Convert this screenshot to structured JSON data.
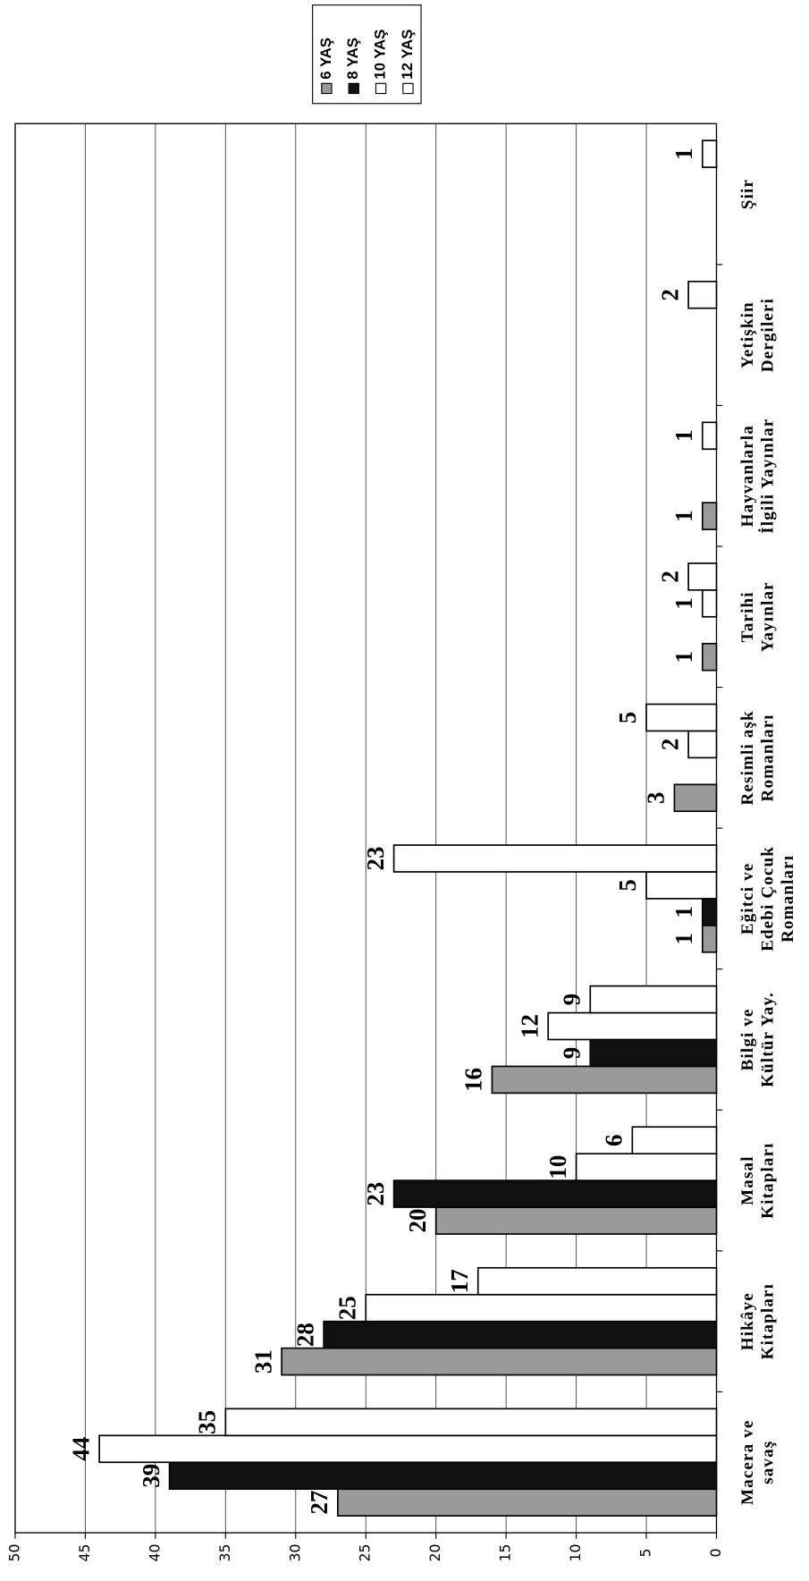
{
  "chart_data": {
    "type": "bar",
    "categories": [
      [
        "Macera ve",
        "savaş"
      ],
      [
        "Hikâye",
        "Kitapları"
      ],
      [
        "Masal",
        "Kitapları"
      ],
      [
        "Bilgi ve",
        "Kültür Yay."
      ],
      [
        "Eğitci ve",
        "Edebi Çocuk",
        "Romanları"
      ],
      [
        "Resimli aşk",
        "Romanları"
      ],
      [
        "Tarihi",
        "Yayınlar"
      ],
      [
        "Hayvanlarla",
        "İlgili Yayınlar"
      ],
      [
        "Yetişkin",
        "Dergileri"
      ],
      [
        "Şiir"
      ]
    ],
    "series": [
      {
        "name": "6 YAŞ",
        "color": "#9a9a9a",
        "values": [
          27,
          31,
          20,
          16,
          1,
          3,
          1,
          1,
          null,
          null
        ]
      },
      {
        "name": "8 YAŞ",
        "color": "#111111",
        "values": [
          39,
          28,
          23,
          9,
          1,
          null,
          null,
          null,
          null,
          null
        ]
      },
      {
        "name": "10 YAŞ",
        "color": "#ffffff",
        "values": [
          44,
          25,
          10,
          12,
          5,
          2,
          1,
          null,
          null,
          null
        ]
      },
      {
        "name": "12 YAŞ",
        "color": "#ffffff",
        "values": [
          35,
          17,
          6,
          9,
          23,
          5,
          2,
          1,
          2,
          1
        ]
      }
    ],
    "ylim": [
      0,
      50
    ],
    "yticks": [
      0,
      5,
      10,
      15,
      20,
      25,
      30,
      35,
      40,
      45,
      50
    ],
    "grid": true,
    "legend": "top-right"
  }
}
